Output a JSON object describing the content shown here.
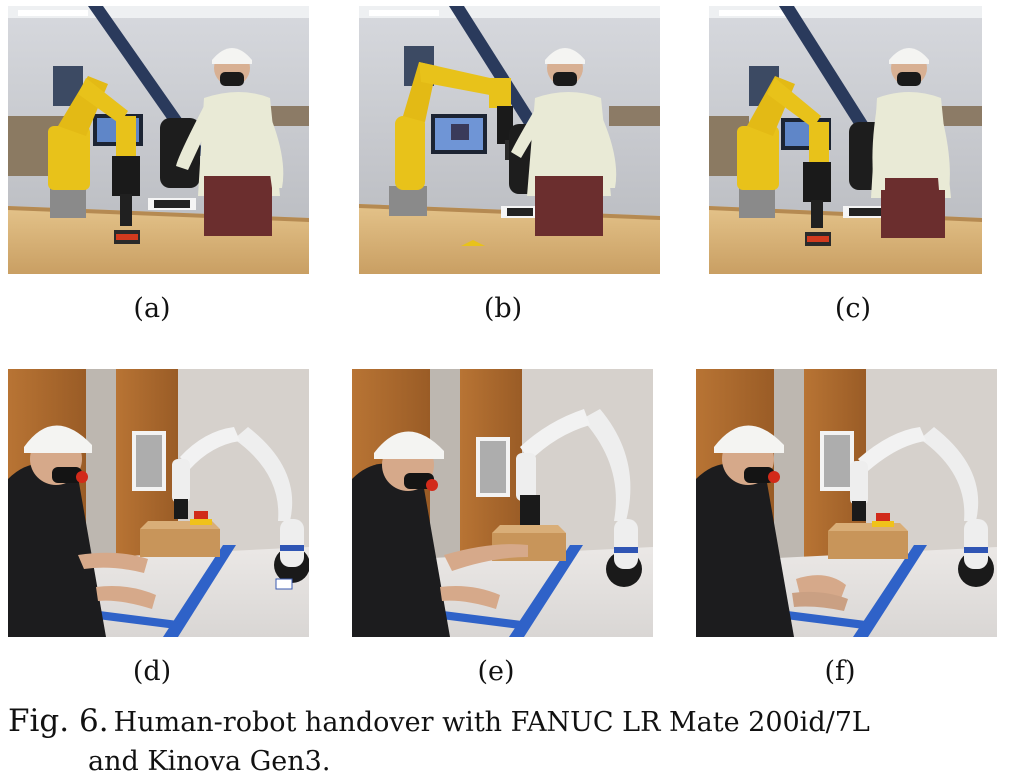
{
  "figure": {
    "number_label": "Fig. 6.",
    "caption_line1": "Human-robot handover with FANUC LR Mate 200id/7L",
    "caption_line2": "and Kinova Gen3."
  },
  "panels": [
    {
      "id": "a",
      "label": "(a)"
    },
    {
      "id": "b",
      "label": "(b)"
    },
    {
      "id": "c",
      "label": "(c)"
    },
    {
      "id": "d",
      "label": "(d)"
    },
    {
      "id": "e",
      "label": "(e)"
    },
    {
      "id": "f",
      "label": "(f)"
    }
  ],
  "colors": {
    "fanuc_yellow": "#e8c21a",
    "kinova_white": "#eeeeee",
    "table_wood": "#d9b67c",
    "tape_blue": "#2f62c8",
    "hoodie": "#e9ead6",
    "hardhat": "#f4f4f2"
  }
}
